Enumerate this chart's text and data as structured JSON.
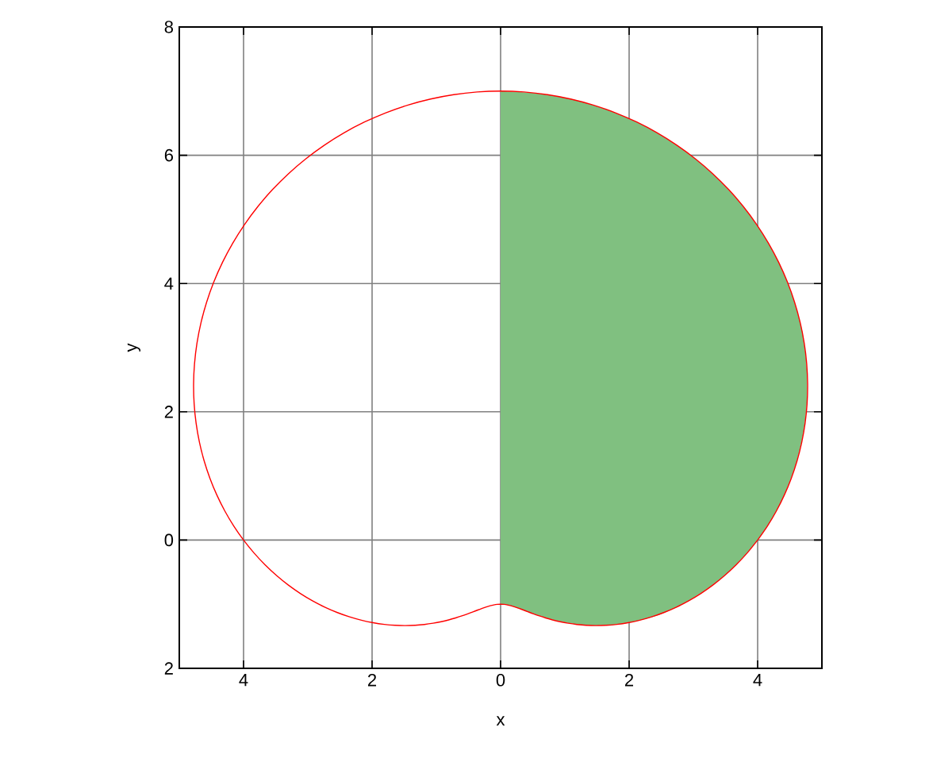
{
  "chart_data": {
    "type": "area",
    "xlabel": "x",
    "ylabel": "y",
    "xlim": [
      -5,
      5
    ],
    "ylim": [
      -2,
      8
    ],
    "xticks": [
      {
        "value": -4,
        "label": "4"
      },
      {
        "value": -2,
        "label": "2"
      },
      0,
      2,
      4
    ],
    "yticks": [
      {
        "value": -2,
        "label": "2"
      },
      0,
      2,
      4,
      6,
      8
    ],
    "grid": true,
    "series": [
      {
        "color": "#80c080",
        "x": [
          0,
          0.09,
          0.18,
          0.29,
          0.4,
          0.54,
          0.7,
          0.89,
          1.09,
          1.33,
          1.59,
          1.87,
          2.17,
          2.48,
          2.8,
          3.11,
          3.43,
          3.72,
          4,
          4.25,
          4.45,
          4.61,
          4.72,
          4.77,
          4.76,
          4.69,
          4.54,
          4.33,
          4.05,
          3.7,
          3.3,
          2.84,
          2.33,
          1.79,
          1.21,
          0.61,
          0
        ],
        "values": [
          -1,
          -1.01,
          -1.03,
          -1.07,
          -1.11,
          -1.16,
          -1.21,
          -1.26,
          -1.3,
          -1.33,
          -1.33,
          -1.31,
          -1.25,
          -1.16,
          -1.02,
          -0.83,
          -0.6,
          -0.33,
          0,
          0.37,
          0.79,
          1.24,
          1.72,
          2.23,
          2.75,
          3.28,
          3.81,
          4.33,
          4.82,
          5.29,
          5.71,
          6.09,
          6.41,
          6.66,
          6.85,
          6.96,
          7
        ]
      }
    ]
  }
}
